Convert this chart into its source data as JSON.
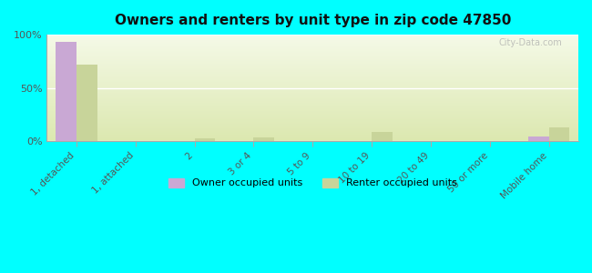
{
  "title": "Owners and renters by unit type in zip code 47850",
  "categories": [
    "1, detached",
    "1, attached",
    "2",
    "3 or 4",
    "5 to 9",
    "10 to 19",
    "20 to 49",
    "50 or more",
    "Mobile home"
  ],
  "owner_values": [
    93,
    0,
    0,
    0,
    0,
    0,
    0,
    0,
    5
  ],
  "renter_values": [
    72,
    0,
    3,
    4,
    0,
    9,
    0,
    0,
    13
  ],
  "owner_color": "#c9a8d4",
  "renter_color": "#c8d49a",
  "background_color": "#00ffff",
  "plot_bg_color_top": "#e8f0c8",
  "plot_bg_color_bottom": "#f5fae8",
  "bar_width": 0.35,
  "ylim": [
    0,
    100
  ],
  "yticks": [
    0,
    50,
    100
  ],
  "watermark": "City-Data.com",
  "legend_owner": "Owner occupied units",
  "legend_renter": "Renter occupied units"
}
